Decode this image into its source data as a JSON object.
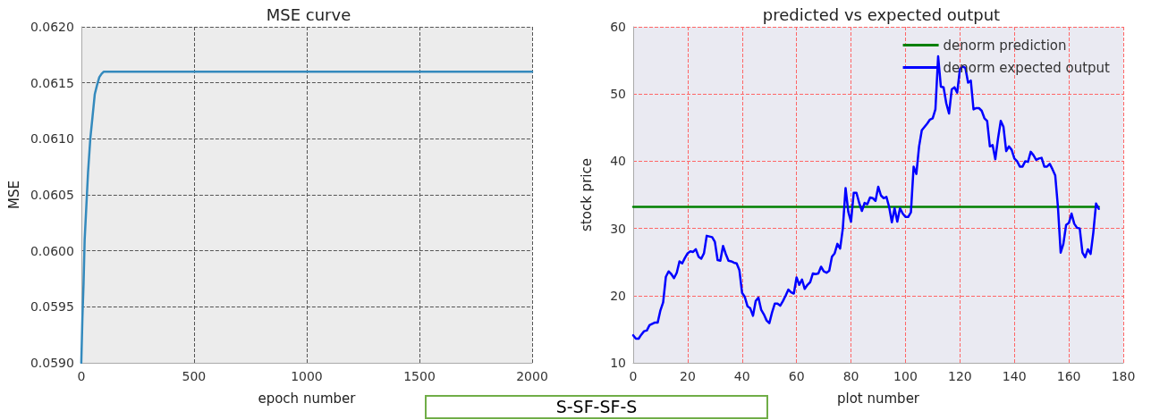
{
  "chart_data": [
    {
      "type": "line",
      "title": "MSE curve",
      "xlabel": "epoch number",
      "ylabel": "MSE",
      "xlim": [
        0,
        2000
      ],
      "xticks": [
        0,
        500,
        1000,
        1500,
        2000
      ],
      "ylim": [
        0.059,
        0.062
      ],
      "yticks": [
        {
          "value": 0.059,
          "label": "0.0590"
        },
        {
          "value": 0.0595,
          "label": "0.0595"
        },
        {
          "value": 0.06,
          "label": "0.0600"
        },
        {
          "value": 0.0605,
          "label": "0.0605"
        },
        {
          "value": 0.061,
          "label": "0.0610"
        },
        {
          "value": 0.0615,
          "label": "0.0615"
        },
        {
          "value": 0.062,
          "label": "0.0620"
        }
      ],
      "grid": true,
      "legend": false,
      "marker": "none",
      "line_style": "solid",
      "series": [
        {
          "color": "#348abd",
          "x": [
            0,
            5,
            10,
            15,
            20,
            25,
            30,
            40,
            50,
            60,
            70,
            80,
            90,
            100,
            120,
            150,
            200,
            500,
            1000,
            1500,
            2000
          ],
          "values": [
            0.059,
            0.0594,
            0.0597,
            0.0601,
            0.0603,
            0.0605,
            0.0607,
            0.061,
            0.0612,
            0.0614,
            0.06148,
            0.06155,
            0.06158,
            0.0616,
            0.0616,
            0.0616,
            0.0616,
            0.0616,
            0.0616,
            0.0616,
            0.0616
          ]
        }
      ]
    },
    {
      "type": "line",
      "title": "predicted vs expected output",
      "xlabel": "plot number",
      "ylabel": "stock price",
      "xlim": [
        0,
        180
      ],
      "xticks": [
        0,
        20,
        40,
        60,
        80,
        100,
        120,
        140,
        160,
        180
      ],
      "ylim": [
        10,
        60
      ],
      "yticks": [
        10,
        20,
        30,
        40,
        50,
        60
      ],
      "grid": true,
      "legend": "top right",
      "marker": "none",
      "line_style": "solid",
      "annotations": [
        "S-SF-SF-S"
      ],
      "series": [
        {
          "name": "denorm prediction",
          "color": "#008000",
          "x": [
            0,
            171
          ],
          "values": [
            33.2,
            33.2
          ]
        },
        {
          "name": "denorm expected output",
          "color": "#0000ff",
          "x": [
            0,
            1,
            2,
            3,
            4,
            5,
            6,
            7,
            8,
            9,
            10,
            11,
            12,
            13,
            14,
            15,
            16,
            17,
            18,
            19,
            20,
            21,
            22,
            23,
            24,
            25,
            26,
            27,
            28,
            29,
            30,
            31,
            32,
            33,
            34,
            35,
            36,
            37,
            38,
            39,
            40,
            41,
            42,
            43,
            44,
            45,
            46,
            47,
            48,
            49,
            50,
            51,
            52,
            53,
            54,
            55,
            56,
            57,
            58,
            59,
            60,
            61,
            62,
            63,
            64,
            65,
            66,
            67,
            68,
            69,
            70,
            71,
            72,
            73,
            74,
            75,
            76,
            77,
            78,
            79,
            80,
            81,
            82,
            83,
            84,
            85,
            86,
            87,
            88,
            89,
            90,
            91,
            92,
            93,
            94,
            95,
            96,
            97,
            98,
            99,
            100,
            101,
            102,
            103,
            104,
            105,
            106,
            107,
            108,
            109,
            110,
            111,
            112,
            113,
            114,
            115,
            116,
            117,
            118,
            119,
            120,
            121,
            122,
            123,
            124,
            125,
            126,
            127,
            128,
            129,
            130,
            131,
            132,
            133,
            134,
            135,
            136,
            137,
            138,
            139,
            140,
            141,
            142,
            143,
            144,
            145,
            146,
            147,
            148,
            149,
            150,
            151,
            152,
            153,
            154,
            155,
            156,
            157,
            158,
            159,
            160,
            161,
            162,
            163,
            164,
            165,
            166,
            167,
            168,
            169,
            170,
            171
          ],
          "values": [
            14.1,
            13.6,
            13.6,
            14.2,
            14.7,
            14.8,
            15.6,
            15.8,
            16.0,
            16.0,
            17.8,
            19.0,
            22.8,
            23.6,
            23.2,
            22.6,
            23.4,
            25.1,
            24.8,
            25.6,
            26.3,
            26.6,
            26.5,
            26.9,
            25.8,
            25.5,
            26.3,
            28.9,
            28.8,
            28.7,
            28.0,
            25.3,
            25.2,
            27.4,
            26.2,
            25.2,
            25.1,
            24.9,
            24.8,
            23.8,
            20.4,
            19.8,
            18.4,
            18.1,
            17.0,
            19.2,
            19.7,
            17.9,
            17.2,
            16.3,
            15.9,
            17.5,
            18.8,
            18.8,
            18.5,
            19.2,
            20.0,
            20.9,
            20.5,
            20.3,
            22.7,
            21.6,
            22.4,
            21.0,
            21.6,
            22.0,
            23.3,
            23.2,
            23.3,
            24.3,
            23.6,
            23.4,
            23.7,
            25.8,
            26.3,
            27.7,
            27.0,
            30.0,
            36.0,
            32.5,
            31.0,
            35.3,
            35.3,
            33.8,
            32.6,
            33.8,
            33.6,
            34.6,
            34.5,
            34.1,
            36.2,
            34.9,
            34.5,
            34.7,
            33.2,
            30.9,
            33.0,
            31.0,
            33.0,
            32.2,
            31.7,
            31.7,
            32.4,
            39.2,
            38.1,
            42.2,
            44.6,
            45.1,
            45.6,
            46.2,
            46.4,
            47.7,
            55.6,
            51.1,
            51.0,
            48.6,
            47.1,
            50.7,
            51.0,
            50.2,
            53.7,
            54.1,
            53.9,
            51.7,
            52.0,
            47.7,
            47.9,
            47.9,
            47.5,
            46.4,
            46.0,
            42.2,
            42.4,
            40.3,
            43.4,
            46.0,
            45.1,
            41.5,
            42.2,
            41.7,
            40.4,
            40.0,
            39.2,
            39.2,
            40.0,
            39.9,
            41.4,
            40.9,
            40.2,
            40.4,
            40.5,
            39.2,
            39.2,
            39.6,
            38.8,
            37.9,
            33.2,
            26.4,
            27.7,
            30.5,
            30.8,
            32.2,
            30.7,
            30.1,
            30.0,
            26.4,
            25.7,
            26.9,
            26.2,
            29.4,
            33.7,
            32.9
          ]
        }
      ]
    }
  ]
}
